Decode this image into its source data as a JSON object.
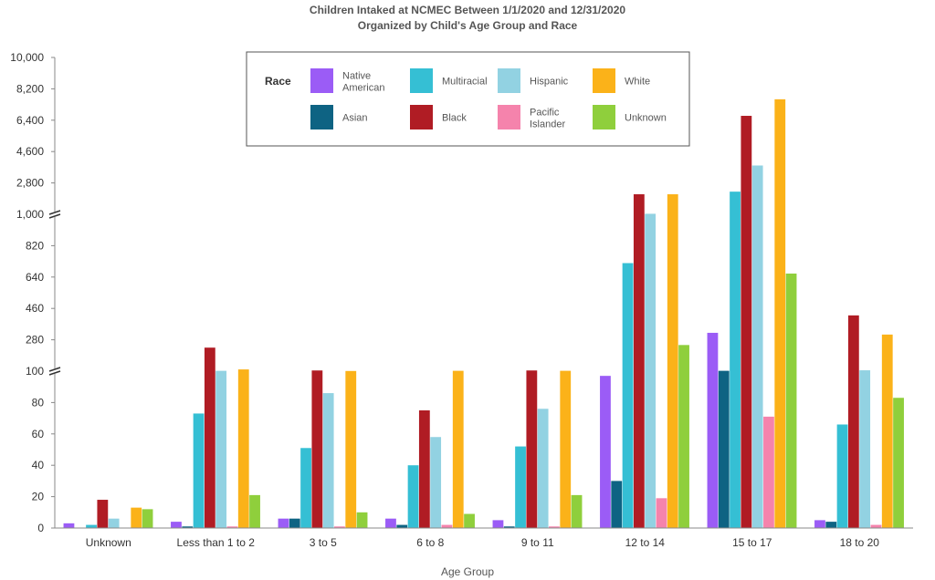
{
  "chart_data": {
    "type": "bar",
    "title": "Children Intaked at NCMEC Between 1/1/2020 and 12/31/2020",
    "subtitle": "Organized by Child's Age Group and Race",
    "xlabel": "Age Group",
    "ylabel": "",
    "legend_title": "Race",
    "legend_position": "top-center",
    "ylim": [
      0,
      10000
    ],
    "axis_scale_note": "broken y-axis: segments 0-100, 100-1,000, 1,000-10,000",
    "y_ticks": [
      "0",
      "20",
      "40",
      "60",
      "80",
      "100",
      "280",
      "460",
      "640",
      "820",
      "1,000",
      "2,800",
      "4,600",
      "6,400",
      "8,200",
      "10,000"
    ],
    "categories": [
      "Unknown",
      "Less than 1 to 2",
      "3 to 5",
      "6 to 8",
      "9 to 11",
      "12 to 14",
      "15 to 17",
      "18 to 20"
    ],
    "series": [
      {
        "name": "Native American",
        "legend_lines": [
          "Native",
          "American"
        ],
        "color": "#9b5cf6",
        "values": [
          3,
          4,
          6,
          6,
          5,
          97,
          320,
          5
        ]
      },
      {
        "name": "Asian",
        "legend_lines": [
          "Asian"
        ],
        "color": "#0e6383",
        "values": [
          0,
          1,
          6,
          2,
          1,
          30,
          102,
          4
        ]
      },
      {
        "name": "Multiracial",
        "legend_lines": [
          "Multiracial"
        ],
        "color": "#35bfd4",
        "values": [
          2,
          73,
          51,
          40,
          52,
          720,
          2300,
          66
        ]
      },
      {
        "name": "Black",
        "legend_lines": [
          "Black"
        ],
        "color": "#b01c24",
        "values": [
          18,
          235,
          104,
          75,
          104,
          2150,
          6650,
          420
        ]
      },
      {
        "name": "Hispanic",
        "legend_lines": [
          "Hispanic"
        ],
        "color": "#92d2e2",
        "values": [
          6,
          102,
          86,
          58,
          76,
          1030,
          3800,
          105
        ]
      },
      {
        "name": "Pacific Islander",
        "legend_lines": [
          "Pacific",
          "Islander"
        ],
        "color": "#f583ac",
        "values": [
          0,
          1,
          1,
          2,
          1,
          19,
          71,
          2
        ]
      },
      {
        "name": "White",
        "legend_lines": [
          "White"
        ],
        "color": "#fbb219",
        "values": [
          13,
          110,
          101,
          102,
          102,
          2150,
          7600,
          310
        ]
      },
      {
        "name": "Unknown",
        "legend_lines": [
          "Unknown"
        ],
        "color": "#8fcf3c",
        "values": [
          12,
          21,
          10,
          9,
          21,
          250,
          660,
          83
        ]
      }
    ]
  }
}
